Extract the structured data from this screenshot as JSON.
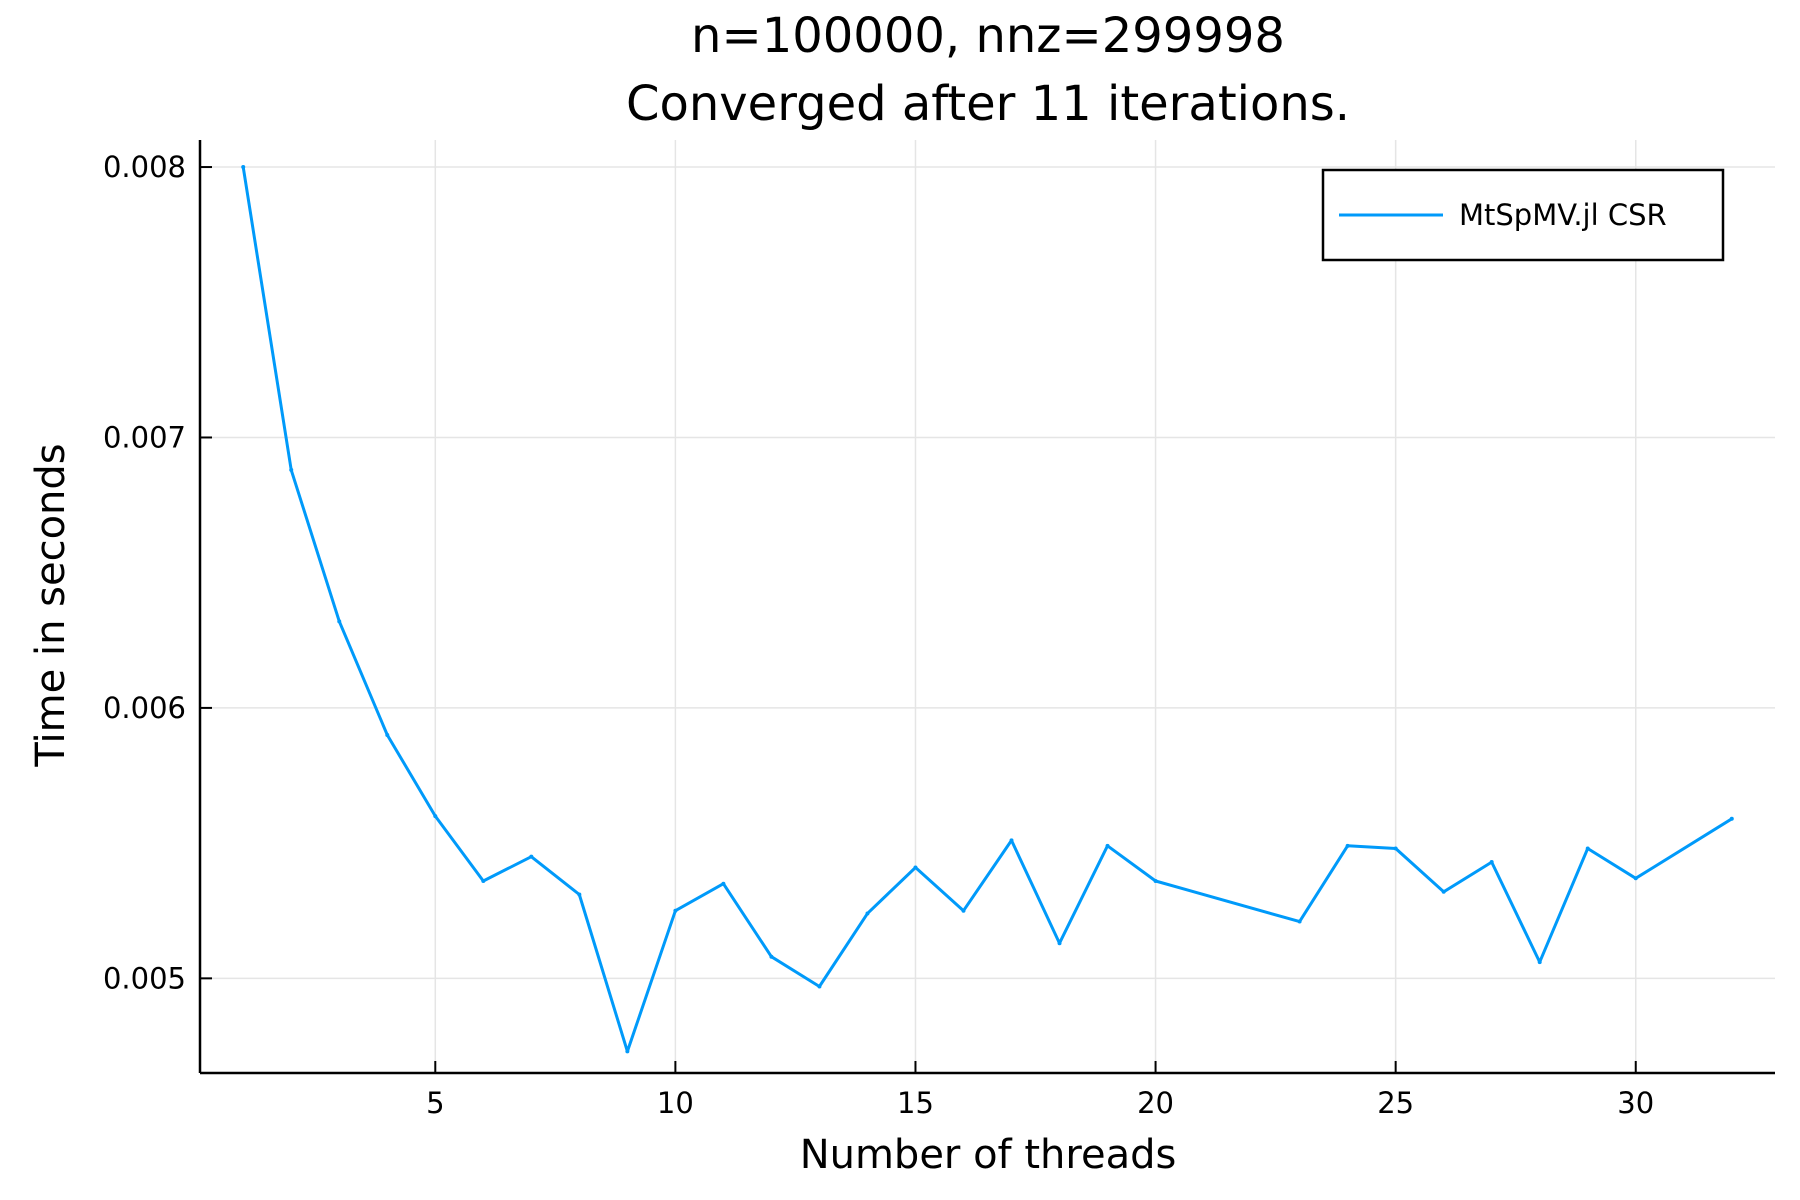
{
  "chart_data": {
    "type": "line",
    "title": "n=100000, nnz=299998",
    "subtitle": "Converged after 11 iterations.",
    "xlabel": "Number of threads",
    "ylabel": "Time in seconds",
    "xlim": [
      0.1,
      32.9
    ],
    "ylim": [
      0.00465,
      0.0081
    ],
    "xticks": [
      5,
      10,
      15,
      20,
      25,
      30
    ],
    "xtick_labels": [
      "5",
      "10",
      "15",
      "20",
      "25",
      "30"
    ],
    "yticks": [
      0.005,
      0.006,
      0.007,
      0.008
    ],
    "ytick_labels": [
      "0.005",
      "0.006",
      "0.007",
      "0.008"
    ],
    "grid": true,
    "legend_position": "top-right",
    "series": [
      {
        "name": "MtSpMV.jl CSR",
        "color": "#009AFA",
        "x": [
          1,
          2,
          3,
          4,
          5,
          6,
          7,
          8,
          9,
          10,
          11,
          12,
          13,
          14,
          15,
          16,
          17,
          18,
          19,
          20,
          23,
          24,
          25,
          26,
          27,
          28,
          29,
          30,
          32
        ],
        "y": [
          0.008,
          0.00688,
          0.00632,
          0.0059,
          0.0056,
          0.00536,
          0.00545,
          0.00531,
          0.00473,
          0.00525,
          0.00535,
          0.00508,
          0.00497,
          0.00524,
          0.00541,
          0.00525,
          0.00551,
          0.00513,
          0.00549,
          0.00536,
          0.00521,
          0.00549,
          0.00548,
          0.00532,
          0.00543,
          0.00506,
          0.00548,
          0.00537,
          0.00559
        ]
      }
    ]
  }
}
